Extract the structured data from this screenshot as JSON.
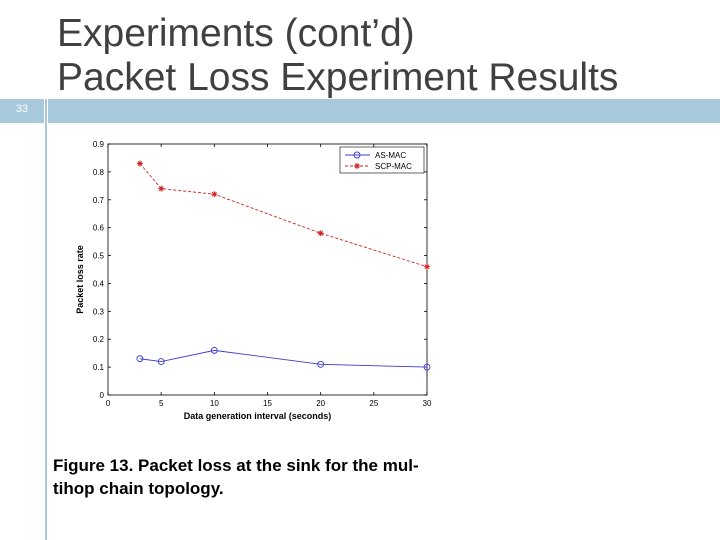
{
  "slide": {
    "title_line1": "Experiments (cont’d)",
    "title_line2": "Packet Loss Experiment Results",
    "number": "33",
    "caption_line1": "Figure 13. Packet loss at the sink for the mul-",
    "caption_line2": "tihop chain topology.",
    "accent_color": "#a8c8dc"
  },
  "chart_data": {
    "type": "line",
    "xlabel": "Data generation interval (seconds)",
    "ylabel": "Packet loss rate",
    "xlim": [
      0,
      30
    ],
    "ylim": [
      0,
      0.9
    ],
    "xticks": [
      "0",
      "5",
      "10",
      "15",
      "20",
      "25",
      "30"
    ],
    "yticks": [
      "0",
      "0.1",
      "0.2",
      "0.3",
      "0.4",
      "0.5",
      "0.6",
      "0.7",
      "0.8",
      "0.9"
    ],
    "grid": false,
    "legend_position": "top-right",
    "series": [
      {
        "name": "AS-MAC",
        "color": "#3b3bd0",
        "marker": "circle",
        "line": "solid",
        "x": [
          3,
          5,
          10,
          20,
          30
        ],
        "y": [
          0.13,
          0.12,
          0.16,
          0.11,
          0.1
        ]
      },
      {
        "name": "SCP-MAC",
        "color": "#d02020",
        "marker": "star",
        "line": "dashed",
        "x": [
          3,
          5,
          10,
          20,
          30
        ],
        "y": [
          0.83,
          0.74,
          0.72,
          0.58,
          0.46
        ]
      }
    ]
  }
}
